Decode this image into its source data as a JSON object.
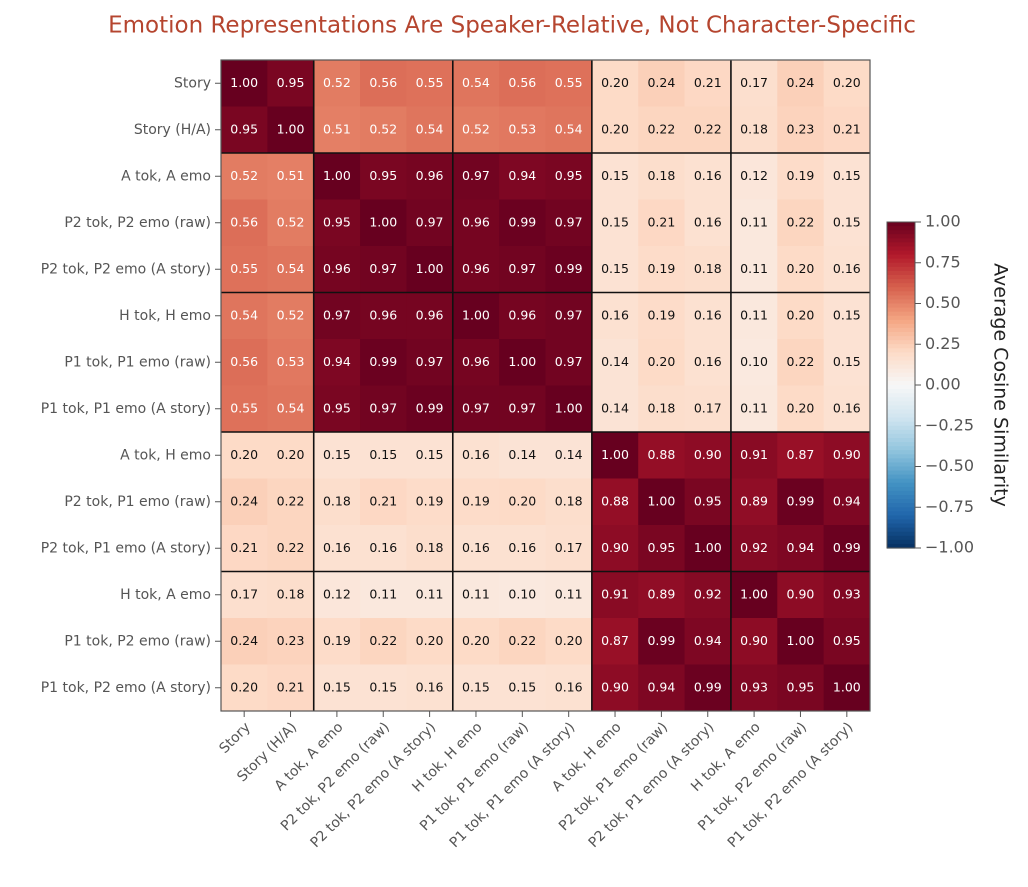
{
  "chart_data": {
    "type": "heatmap",
    "title": "Emotion Representations Are Speaker-Relative, Not Character-Specific",
    "categories": [
      "Story",
      "Story (H/A)",
      "A tok, A emo",
      "P2 tok, P2 emo (raw)",
      "P2 tok, P2 emo (A story)",
      "H tok, H emo",
      "P1 tok, P1 emo (raw)",
      "P1 tok, P1 emo (A story)",
      "A tok, H emo",
      "P2 tok, P1 emo (raw)",
      "P2 tok, P1 emo (A story)",
      "H tok, A emo",
      "P1 tok, P2 emo (raw)",
      "P1 tok, P2 emo (A story)"
    ],
    "values": [
      [
        1.0,
        0.95,
        0.52,
        0.56,
        0.55,
        0.54,
        0.56,
        0.55,
        0.2,
        0.24,
        0.21,
        0.17,
        0.24,
        0.2
      ],
      [
        0.95,
        1.0,
        0.51,
        0.52,
        0.54,
        0.52,
        0.53,
        0.54,
        0.2,
        0.22,
        0.22,
        0.18,
        0.23,
        0.21
      ],
      [
        0.52,
        0.51,
        1.0,
        0.95,
        0.96,
        0.97,
        0.94,
        0.95,
        0.15,
        0.18,
        0.16,
        0.12,
        0.19,
        0.15
      ],
      [
        0.56,
        0.52,
        0.95,
        1.0,
        0.97,
        0.96,
        0.99,
        0.97,
        0.15,
        0.21,
        0.16,
        0.11,
        0.22,
        0.15
      ],
      [
        0.55,
        0.54,
        0.96,
        0.97,
        1.0,
        0.96,
        0.97,
        0.99,
        0.15,
        0.19,
        0.18,
        0.11,
        0.2,
        0.16
      ],
      [
        0.54,
        0.52,
        0.97,
        0.96,
        0.96,
        1.0,
        0.96,
        0.97,
        0.16,
        0.19,
        0.16,
        0.11,
        0.2,
        0.15
      ],
      [
        0.56,
        0.53,
        0.94,
        0.99,
        0.97,
        0.96,
        1.0,
        0.97,
        0.14,
        0.2,
        0.16,
        0.1,
        0.22,
        0.15
      ],
      [
        0.55,
        0.54,
        0.95,
        0.97,
        0.99,
        0.97,
        0.97,
        1.0,
        0.14,
        0.18,
        0.17,
        0.11,
        0.2,
        0.16
      ],
      [
        0.2,
        0.2,
        0.15,
        0.15,
        0.15,
        0.16,
        0.14,
        0.14,
        1.0,
        0.88,
        0.9,
        0.91,
        0.87,
        0.9
      ],
      [
        0.24,
        0.22,
        0.18,
        0.21,
        0.19,
        0.19,
        0.2,
        0.18,
        0.88,
        1.0,
        0.95,
        0.89,
        0.99,
        0.94
      ],
      [
        0.21,
        0.22,
        0.16,
        0.16,
        0.18,
        0.16,
        0.16,
        0.17,
        0.9,
        0.95,
        1.0,
        0.92,
        0.94,
        0.99
      ],
      [
        0.17,
        0.18,
        0.12,
        0.11,
        0.11,
        0.11,
        0.1,
        0.11,
        0.91,
        0.89,
        0.92,
        1.0,
        0.9,
        0.93
      ],
      [
        0.24,
        0.23,
        0.19,
        0.22,
        0.2,
        0.2,
        0.22,
        0.2,
        0.87,
        0.99,
        0.94,
        0.9,
        1.0,
        0.95
      ],
      [
        0.2,
        0.21,
        0.15,
        0.15,
        0.16,
        0.15,
        0.15,
        0.16,
        0.9,
        0.94,
        0.99,
        0.93,
        0.95,
        1.0
      ]
    ],
    "value_labels": [
      [
        "1.00",
        "0.95",
        "0.52",
        "0.56",
        "0.55",
        "0.54",
        "0.56",
        "0.55",
        "0.20",
        "0.24",
        "0.21",
        "0.17",
        "0.24",
        "0.20"
      ],
      [
        "0.95",
        "1.00",
        "0.51",
        "0.52",
        "0.54",
        "0.52",
        "0.53",
        "0.54",
        "0.20",
        "0.22",
        "0.22",
        "0.18",
        "0.23",
        "0.21"
      ],
      [
        "0.52",
        "0.51",
        "1.00",
        "0.95",
        "0.96",
        "0.97",
        "0.94",
        "0.95",
        "0.15",
        "0.18",
        "0.16",
        "0.12",
        "0.19",
        "0.15"
      ],
      [
        "0.56",
        "0.52",
        "0.95",
        "1.00",
        "0.97",
        "0.96",
        "0.99",
        "0.97",
        "0.15",
        "0.21",
        "0.16",
        "0.11",
        "0.22",
        "0.15"
      ],
      [
        "0.55",
        "0.54",
        "0.96",
        "0.97",
        "1.00",
        "0.96",
        "0.97",
        "0.99",
        "0.15",
        "0.19",
        "0.18",
        "0.11",
        "0.20",
        "0.16"
      ],
      [
        "0.54",
        "0.52",
        "0.97",
        "0.96",
        "0.96",
        "1.00",
        "0.96",
        "0.97",
        "0.16",
        "0.19",
        "0.16",
        "0.11",
        "0.20",
        "0.15"
      ],
      [
        "0.56",
        "0.53",
        "0.94",
        "0.99",
        "0.97",
        "0.96",
        "1.00",
        "0.97",
        "0.14",
        "0.20",
        "0.16",
        "0.10",
        "0.22",
        "0.15"
      ],
      [
        "0.55",
        "0.54",
        "0.95",
        "0.97",
        "0.99",
        "0.97",
        "0.97",
        "1.00",
        "0.14",
        "0.18",
        "0.17",
        "0.11",
        "0.20",
        "0.16"
      ],
      [
        "0.20",
        "0.20",
        "0.15",
        "0.15",
        "0.15",
        "0.16",
        "0.14",
        "0.14",
        "1.00",
        "0.88",
        "0.90",
        "0.91",
        "0.87",
        "0.90"
      ],
      [
        "0.24",
        "0.22",
        "0.18",
        "0.21",
        "0.19",
        "0.19",
        "0.20",
        "0.18",
        "0.88",
        "1.00",
        "0.95",
        "0.89",
        "0.99",
        "0.94"
      ],
      [
        "0.21",
        "0.22",
        "0.16",
        "0.16",
        "0.18",
        "0.16",
        "0.16",
        "0.17",
        "0.90",
        "0.95",
        "1.00",
        "0.92",
        "0.94",
        "0.99"
      ],
      [
        "0.17",
        "0.18",
        "0.12",
        "0.11",
        "0.11",
        "0.11",
        "0.10",
        "0.11",
        "0.91",
        "0.89",
        "0.92",
        "1.00",
        "0.90",
        "0.93"
      ],
      [
        "0.24",
        "0.23",
        "0.19",
        "0.22",
        "0.20",
        "0.20",
        "0.22",
        "0.20",
        "0.87",
        "0.99",
        "0.94",
        "0.90",
        "1.00",
        "0.95"
      ],
      [
        "0.20",
        "0.21",
        "0.15",
        "0.15",
        "0.16",
        "0.15",
        "0.15",
        "0.16",
        "0.90",
        "0.94",
        "0.99",
        "0.93",
        "0.95",
        "1.00"
      ]
    ],
    "colormap": "RdBu_r",
    "zlim": [
      -1,
      1
    ],
    "colorbar_label": "Average Cosine Similarity",
    "zticks": [
      {
        "value": 1,
        "label": "1.00"
      },
      {
        "value": 0.75,
        "label": "0.75"
      },
      {
        "value": 0.5,
        "label": "0.50"
      },
      {
        "value": 0.25,
        "label": "0.25"
      },
      {
        "value": 0,
        "label": "0.00"
      },
      {
        "value": -0.25,
        "label": "−0.25"
      },
      {
        "value": -0.5,
        "label": "−0.50"
      },
      {
        "value": -0.75,
        "label": "−0.75"
      },
      {
        "value": -1,
        "label": "−1.00"
      }
    ]
  }
}
